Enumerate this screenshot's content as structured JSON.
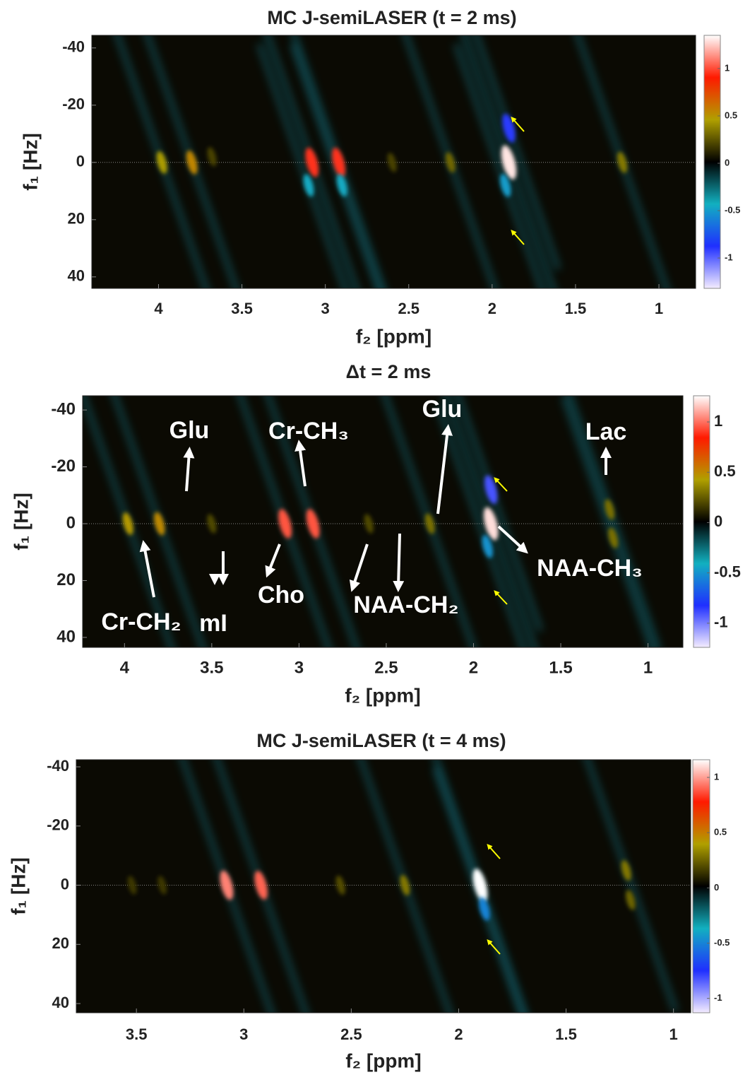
{
  "chart_data": [
    {
      "type": "heatmap",
      "title": "MC J-semiLASER (t = 2 ms)",
      "xlabel": "f₂ [ppm]",
      "ylabel": "f₁ [Hz]",
      "xlim": [
        4.4,
        0.78
      ],
      "xticks": [
        4,
        3.5,
        3,
        2.5,
        2,
        1.5,
        1
      ],
      "ylim": [
        -44.4,
        44
      ],
      "yticks": [
        -40,
        -20,
        0,
        20,
        40
      ],
      "clim": [
        -1.32,
        1.35
      ],
      "cticks": [
        1,
        0.5,
        0,
        -0.5,
        -1
      ],
      "colors": [
        "#f4ecff",
        "#1f2fff",
        "#12b0c0",
        "#000000",
        "#b0a000",
        "#ff1a00",
        "#ffffff"
      ],
      "zero_line": true,
      "peaks": {
        "x": [
          3.98,
          3.8,
          3.68,
          3.08,
          2.92,
          2.6,
          2.25,
          1.9,
          1.9,
          1.22,
          1.92,
          3.1,
          2.9
        ],
        "y": [
          0,
          0,
          -2,
          0,
          0,
          0,
          0,
          0,
          -12,
          0,
          8,
          8,
          8
        ],
        "values": [
          0.45,
          0.55,
          0.2,
          0.95,
          0.95,
          0.2,
          0.3,
          1.3,
          -0.9,
          0.35,
          -0.5,
          -0.45,
          -0.45
        ]
      }
    },
    {
      "type": "heatmap",
      "title": "Δt = 2 ms",
      "xlabel": "f₂ [ppm]",
      "ylabel": "f₁ [Hz]",
      "xlim": [
        4.24,
        0.8
      ],
      "xticks": [
        4,
        3.5,
        3,
        2.5,
        2,
        1.5,
        1
      ],
      "ylim": [
        -45,
        43.5
      ],
      "yticks": [
        -40,
        -20,
        0,
        20,
        40
      ],
      "clim": [
        -1.24,
        1.26
      ],
      "cticks": [
        1,
        0.5,
        0,
        -0.5,
        -1
      ],
      "colors": [
        "#f4ecff",
        "#1f2fff",
        "#12b0c0",
        "#000000",
        "#b0a000",
        "#ff1a00",
        "#ffffff"
      ],
      "zero_line": true,
      "peaks": {
        "x": [
          3.98,
          3.8,
          3.5,
          3.08,
          2.92,
          2.6,
          2.25,
          1.9,
          1.9,
          1.22,
          1.2,
          1.92
        ],
        "y": [
          0,
          0,
          0,
          0,
          0,
          0,
          0,
          0,
          -12,
          -5,
          5,
          8
        ],
        "values": [
          0.45,
          0.5,
          0.2,
          0.95,
          0.95,
          0.2,
          0.3,
          1.2,
          -0.9,
          0.3,
          0.3,
          -0.5
        ]
      },
      "annotations": [
        "Glu",
        "Cr-CH₃",
        "Glu",
        "Lac",
        "Cr-CH₂",
        "mI",
        "Cho",
        "NAA-CH₂",
        "NAA-CH₃"
      ]
    },
    {
      "type": "heatmap",
      "title": "MC J-semiLASER (t = 4 ms)",
      "xlabel": "f₂ [ppm]",
      "ylabel": "f₁ [Hz]",
      "xlim": [
        3.78,
        0.92
      ],
      "xticks": [
        3.5,
        3,
        2.5,
        2,
        1.5,
        1
      ],
      "ylim": [
        -42.4,
        43.1
      ],
      "yticks": [
        -40,
        -20,
        0,
        20,
        40
      ],
      "clim": [
        -1.13,
        1.16
      ],
      "cticks": [
        1,
        0.5,
        0,
        -0.5,
        -1
      ],
      "colors": [
        "#f4ecff",
        "#1f2fff",
        "#12b0c0",
        "#000000",
        "#b0a000",
        "#ff1a00",
        "#ffffff"
      ],
      "zero_line": true,
      "peaks": {
        "x": [
          3.52,
          3.38,
          3.08,
          2.92,
          2.55,
          2.25,
          1.9,
          1.22,
          1.2,
          1.88
        ],
        "y": [
          0,
          0,
          0,
          0,
          0,
          0,
          0,
          -5,
          5,
          8
        ],
        "values": [
          0.15,
          0.15,
          0.95,
          0.9,
          0.2,
          0.3,
          1.2,
          0.3,
          0.25,
          -0.5
        ]
      }
    }
  ]
}
